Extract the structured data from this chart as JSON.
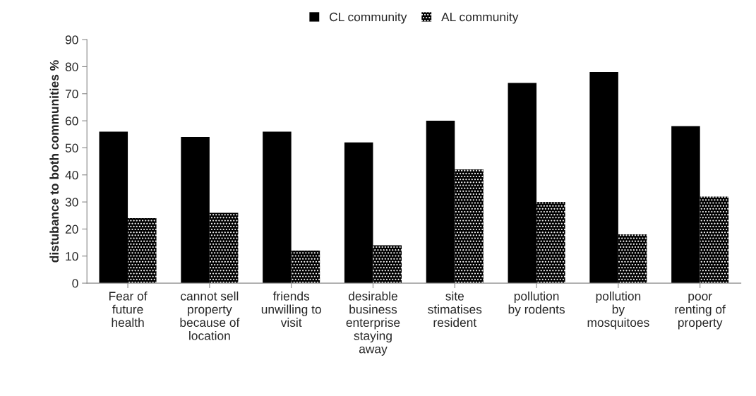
{
  "chart_data": {
    "type": "bar",
    "categories": [
      "Fear of\nfuture\nhealth",
      "cannot sell\nproperty\nbecause of\nlocation",
      "friends\nunwilling to\nvisit",
      "desirable\nbusiness\nenterprise\nstaying\naway",
      "site\nstimatises\nresident",
      "pollution\nby rodents",
      "pollution\nby\nmosquitoes",
      "poor\nrenting of\nproperty"
    ],
    "series": [
      {
        "name": "CL community",
        "color": "#000000",
        "values": [
          56,
          54,
          56,
          52,
          60,
          74,
          78,
          58
        ]
      },
      {
        "name": "AL community",
        "color": "#000000",
        "values": [
          24,
          26,
          12,
          14,
          42,
          30,
          18,
          32
        ]
      }
    ],
    "ylabel": "distubance to both communities %",
    "ylim": [
      0,
      90
    ],
    "yticks": [
      0,
      10,
      20,
      30,
      40,
      50,
      60,
      70,
      80,
      90
    ],
    "grid": false,
    "legend": "top"
  }
}
